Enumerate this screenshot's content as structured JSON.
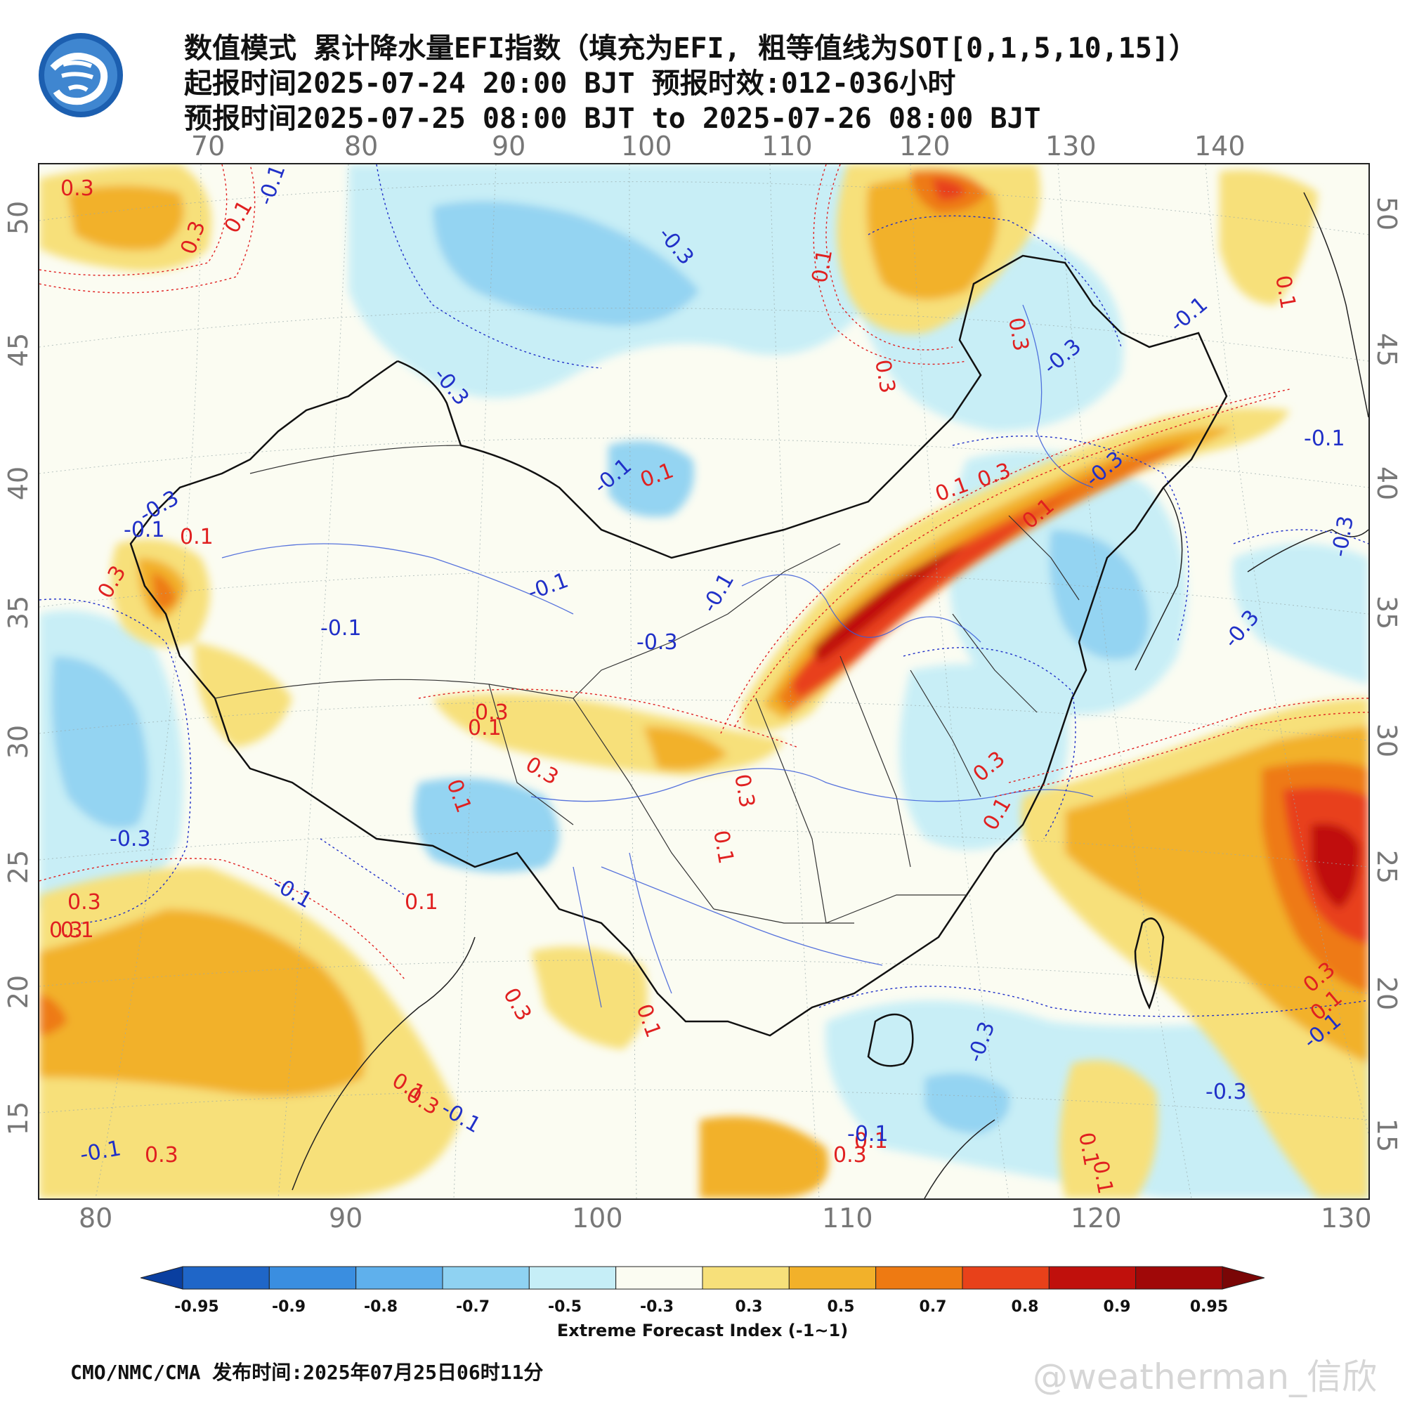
{
  "header": {
    "title_line1": "数值模式 累计降水量EFI指数（填充为EFI, 粗等值线为SOT[0,1,5,10,15]）",
    "title_line2": "起报时间2025-07-24 20:00 BJT 预报时效:012-036小时",
    "title_line3": "预报时间2025-07-25 08:00 BJT to 2025-07-26 08:00 BJT"
  },
  "map": {
    "top_lon_ticks": [
      "70",
      "80",
      "90",
      "100",
      "110",
      "120",
      "130",
      "140"
    ],
    "bottom_lon_ticks": [
      "80",
      "90",
      "100",
      "110",
      "120",
      "130"
    ],
    "left_lat_ticks": [
      "50",
      "45",
      "40",
      "35",
      "30",
      "25",
      "20",
      "15"
    ],
    "right_lat_ticks": [
      "50",
      "45",
      "40",
      "35",
      "30",
      "25",
      "20",
      "15"
    ],
    "contour_labels": {
      "red": [
        "0.3",
        "0.1",
        "0.3",
        "0.1",
        "0.3",
        "0.1",
        "0.1",
        "0.3",
        "0.1",
        "0.1",
        "0.3",
        "0.3",
        "0.1",
        "0.3",
        "0.1",
        "0.3",
        "0.1",
        "0.3",
        "0.1",
        "0.3",
        "0.1",
        "0.1",
        "0.3",
        "0.3",
        "0.1",
        "0.1",
        "0.3",
        "0.3",
        "0.1",
        "0.3",
        "0.1",
        "0.1",
        "0.3",
        "0.1",
        "0.3",
        "0.1"
      ],
      "blue": [
        "-0.1",
        "-0.3",
        "-0.3",
        "-0.3",
        "-0.1",
        "-0.1",
        "-0.3",
        "-0.1",
        "-0.1",
        "-0.3",
        "-0.1",
        "-0.3",
        "-0.1",
        "-0.3",
        "-0.3",
        "-0.1",
        "-0.3",
        "-0.1",
        "-0.3",
        "-0.1",
        "-0.1",
        "-0.3",
        "-0.1",
        "-0.1"
      ]
    }
  },
  "colorbar": {
    "labels": [
      "-0.95",
      "-0.9",
      "-0.8",
      "-0.7",
      "-0.5",
      "-0.3",
      "0.3",
      "0.5",
      "0.7",
      "0.8",
      "0.9",
      "0.95"
    ],
    "colors": [
      "#0a3fa0",
      "#1f66c8",
      "#3a8ee0",
      "#5fb0ec",
      "#8fd2f2",
      "#c6eef7",
      "#fbfcf2",
      "#f7e07a",
      "#f2b12a",
      "#ee7a12",
      "#e8411a",
      "#c0100c",
      "#a00808",
      "#7a0606"
    ],
    "title": "Extreme Forecast Index (-1~1)"
  },
  "footer": {
    "source": "CMO/NMC/CMA 发布时间:2025年07月25日06时11分",
    "watermark": "@weatherman_信欣"
  }
}
